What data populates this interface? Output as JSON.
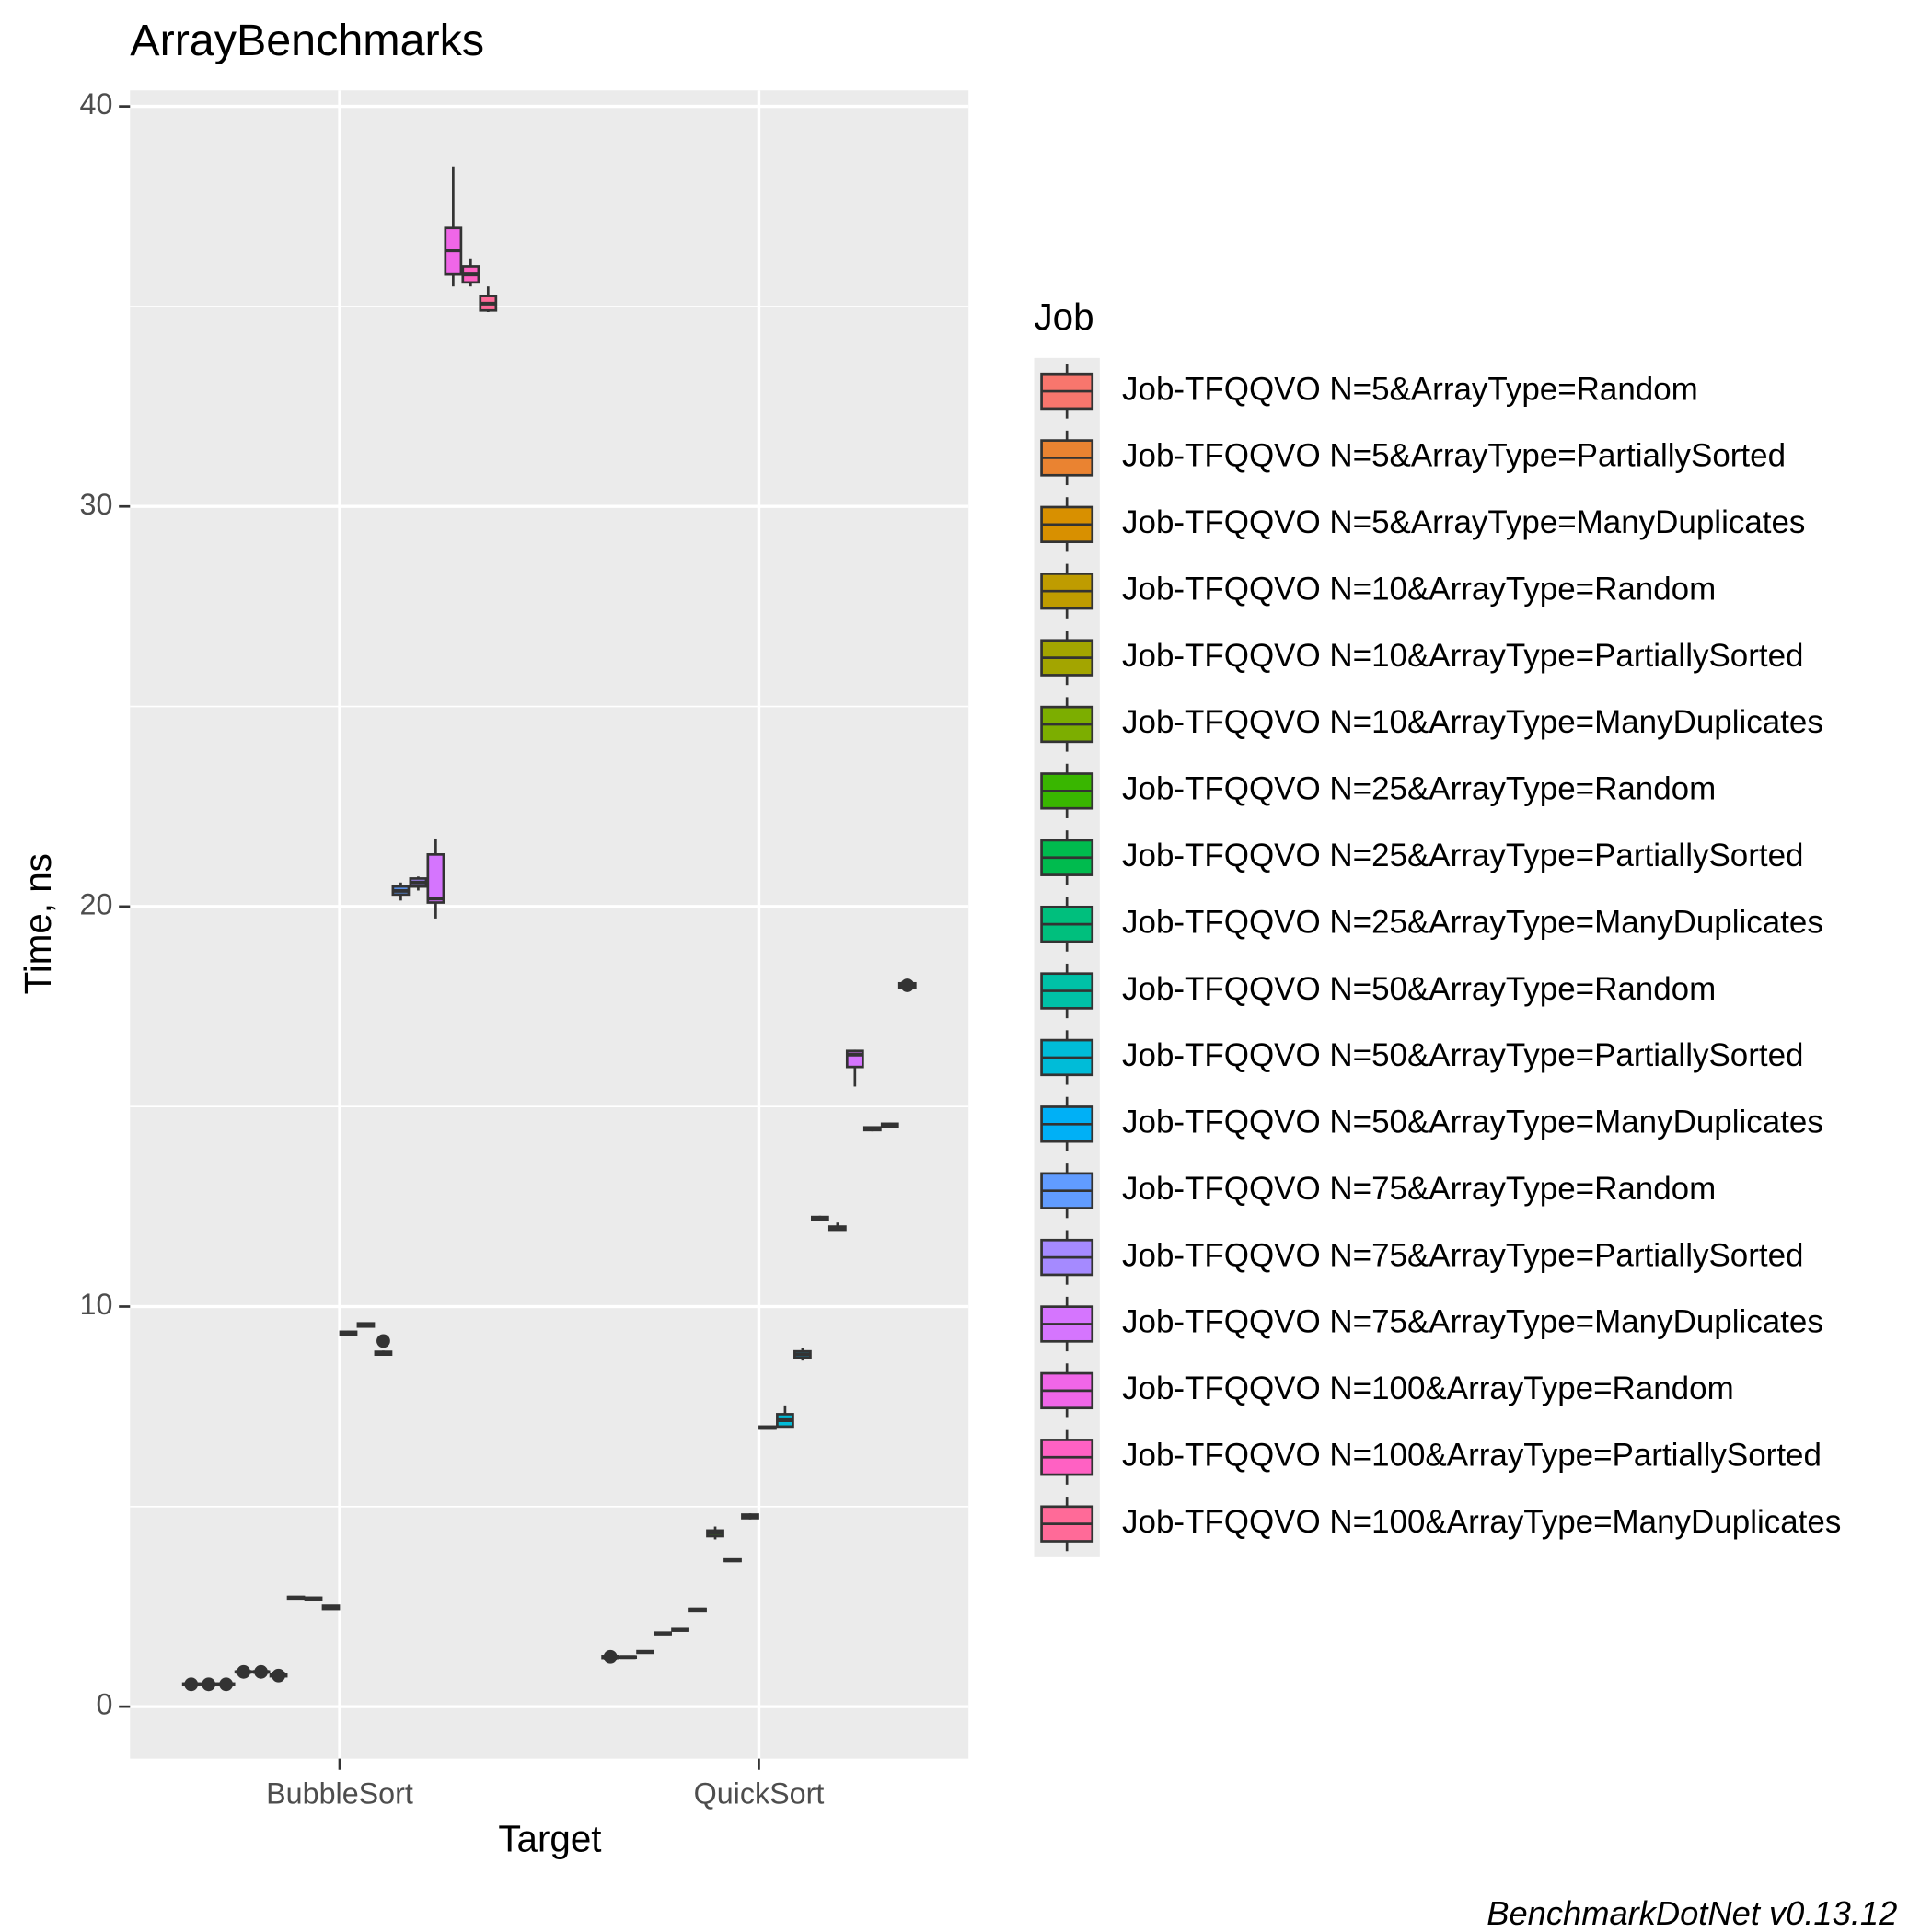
{
  "chart_data": {
    "type": "box",
    "title": "ArrayBenchmarks",
    "x_label": "Target",
    "y_label": "Time, ns",
    "legend_title": "Job",
    "caption": "BenchmarkDotNet v0.13.12",
    "categories": [
      "BubbleSort",
      "QuickSort"
    ],
    "ylim": [
      -1.3,
      40.4
    ],
    "yticks": [
      0,
      10,
      20,
      30,
      40
    ],
    "minor_yticks": [
      5,
      15,
      25,
      35
    ],
    "grid": true,
    "series": [
      {
        "name": "Job-TFQQVO N=5&ArrayType=Random",
        "color": "#F8766D",
        "values": [
          [
            0.52,
            0.54,
            0.56,
            0.58,
            0.6
          ],
          [
            1.2,
            1.22,
            1.24,
            1.26,
            1.28
          ]
        ],
        "outliers": [
          [
            0.56
          ],
          [
            1.24
          ]
        ]
      },
      {
        "name": "Job-TFQQVO N=5&ArrayType=PartiallySorted",
        "color": "#EA8331",
        "values": [
          [
            0.52,
            0.54,
            0.56,
            0.58,
            0.6
          ],
          [
            1.22,
            1.23,
            1.24,
            1.25,
            1.26
          ]
        ],
        "outliers": [
          [
            0.56
          ],
          []
        ]
      },
      {
        "name": "Job-TFQQVO N=5&ArrayType=ManyDuplicates",
        "color": "#D89000",
        "values": [
          [
            0.52,
            0.54,
            0.56,
            0.58,
            0.6
          ],
          [
            1.33,
            1.34,
            1.36,
            1.38,
            1.39
          ]
        ],
        "outliers": [
          [
            0.56
          ],
          []
        ]
      },
      {
        "name": "Job-TFQQVO N=10&ArrayType=Random",
        "color": "#BF9C00",
        "values": [
          [
            0.85,
            0.86,
            0.87,
            0.88,
            0.89
          ],
          [
            1.8,
            1.81,
            1.83,
            1.85,
            1.86
          ]
        ],
        "outliers": [
          [
            0.87
          ],
          []
        ]
      },
      {
        "name": "Job-TFQQVO N=10&ArrayType=PartiallySorted",
        "color": "#A3A500",
        "values": [
          [
            0.85,
            0.86,
            0.87,
            0.88,
            0.89
          ],
          [
            1.89,
            1.9,
            1.92,
            1.94,
            1.95
          ]
        ],
        "outliers": [
          [
            0.87
          ],
          []
        ]
      },
      {
        "name": "Job-TFQQVO N=10&ArrayType=ManyDuplicates",
        "color": "#7CAE00",
        "values": [
          [
            0.74,
            0.76,
            0.78,
            0.8,
            0.82
          ],
          [
            2.39,
            2.4,
            2.42,
            2.44,
            2.45
          ]
        ],
        "outliers": [
          [
            0.78
          ],
          []
        ]
      },
      {
        "name": "Job-TFQQVO N=25&ArrayType=Random",
        "color": "#39B600",
        "values": [
          [
            2.69,
            2.7,
            2.72,
            2.74,
            2.75
          ],
          [
            4.18,
            4.26,
            4.34,
            4.4,
            4.5
          ]
        ],
        "outliers": [
          [],
          []
        ]
      },
      {
        "name": "Job-TFQQVO N=25&ArrayType=PartiallySorted",
        "color": "#00BB4E",
        "values": [
          [
            2.67,
            2.68,
            2.7,
            2.72,
            2.73
          ],
          [
            3.63,
            3.64,
            3.66,
            3.68,
            3.69
          ]
        ],
        "outliers": [
          [],
          []
        ]
      },
      {
        "name": "Job-TFQQVO N=25&ArrayType=ManyDuplicates",
        "color": "#00BF7D",
        "values": [
          [
            2.42,
            2.44,
            2.48,
            2.52,
            2.54
          ],
          [
            4.68,
            4.71,
            4.74,
            4.8,
            4.83
          ]
        ],
        "outliers": [
          [],
          []
        ]
      },
      {
        "name": "Job-TFQQVO N=50&ArrayType=Random",
        "color": "#00C1A7",
        "values": [
          [
            9.28,
            9.3,
            9.33,
            9.37,
            9.4
          ],
          [
            6.93,
            6.95,
            6.97,
            7.0,
            7.02
          ]
        ],
        "outliers": [
          [],
          []
        ]
      },
      {
        "name": "Job-TFQQVO N=50&ArrayType=PartiallySorted",
        "color": "#00BCD8",
        "values": [
          [
            9.48,
            9.5,
            9.54,
            9.58,
            9.6
          ],
          [
            6.98,
            7.0,
            7.16,
            7.31,
            7.53
          ]
        ],
        "outliers": [
          [],
          []
        ]
      },
      {
        "name": "Job-TFQQVO N=50&ArrayType=ManyDuplicates",
        "color": "#00B0F6",
        "values": [
          [
            8.78,
            8.8,
            8.83,
            8.87,
            8.9
          ],
          [
            8.65,
            8.72,
            8.8,
            8.88,
            8.96
          ]
        ],
        "outliers": [
          [
            9.14
          ],
          []
        ]
      },
      {
        "name": "Job-TFQQVO N=75&ArrayType=Random",
        "color": "#619CFF",
        "values": [
          [
            20.15,
            20.3,
            20.39,
            20.5,
            20.6
          ],
          [
            12.15,
            12.18,
            12.21,
            12.24,
            12.27
          ]
        ],
        "outliers": [
          [],
          []
        ]
      },
      {
        "name": "Job-TFQQVO N=75&ArrayType=PartiallySorted",
        "color": "#A58AFF",
        "values": [
          [
            20.4,
            20.5,
            20.6,
            20.7,
            20.75
          ],
          [
            11.9,
            11.92,
            11.96,
            12.0,
            12.1
          ]
        ],
        "outliers": [
          [],
          []
        ]
      },
      {
        "name": "Job-TFQQVO N=75&ArrayType=ManyDuplicates",
        "color": "#D575FE",
        "values": [
          [
            19.7,
            20.1,
            20.2,
            21.3,
            21.7
          ],
          [
            15.5,
            15.99,
            16.3,
            16.39,
            16.42
          ]
        ],
        "outliers": [
          [],
          []
        ]
      },
      {
        "name": "Job-TFQQVO N=100&ArrayType=Random",
        "color": "#F066E8",
        "values": [
          [
            35.5,
            35.8,
            36.4,
            36.96,
            38.5
          ],
          [
            14.38,
            14.41,
            14.44,
            14.48,
            14.5
          ]
        ],
        "outliers": [
          [],
          []
        ]
      },
      {
        "name": "Job-TFQQVO N=100&ArrayType=PartiallySorted",
        "color": "#FF61C3",
        "values": [
          [
            35.5,
            35.6,
            35.8,
            36.0,
            36.2
          ],
          [
            14.48,
            14.5,
            14.53,
            14.57,
            14.6
          ]
        ],
        "outliers": [
          [],
          []
        ]
      },
      {
        "name": "Job-TFQQVO N=100&ArrayType=ManyDuplicates",
        "color": "#FF6A98",
        "values": [
          [
            34.86,
            34.9,
            35.07,
            35.26,
            35.5
          ],
          [
            17.95,
            17.98,
            18.03,
            18.08,
            18.12
          ]
        ],
        "outliers": [
          [],
          [
            18.03
          ]
        ]
      }
    ]
  }
}
